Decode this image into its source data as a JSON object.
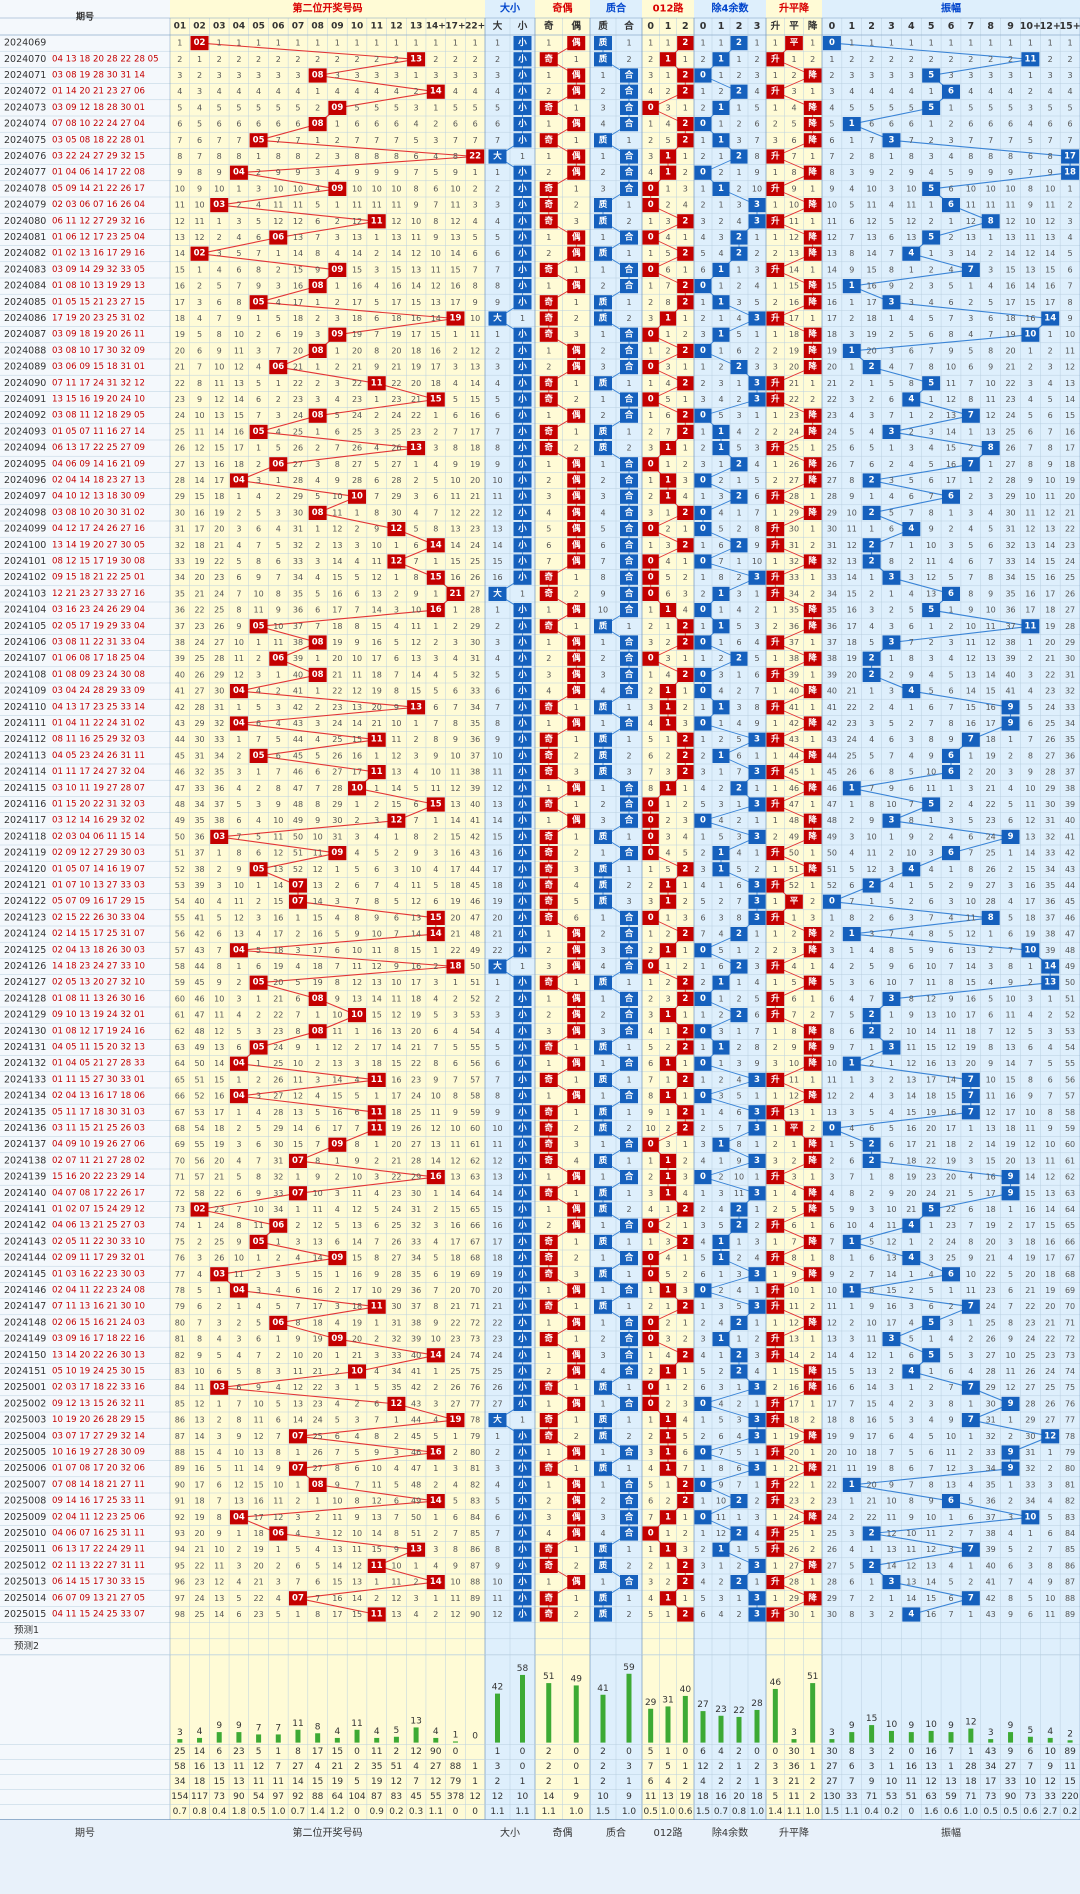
{
  "header": {
    "issue_label": "期号",
    "groups": [
      {
        "key": "pos2",
        "label": "第二位开奖号码",
        "color": "#d90000"
      },
      {
        "key": "size",
        "label": "大小",
        "color": "#0044cc"
      },
      {
        "key": "oe",
        "label": "奇偶",
        "color": "#d90000"
      },
      {
        "key": "pc",
        "label": "质合",
        "color": "#0044cc"
      },
      {
        "key": "r3",
        "label": "012路",
        "color": "#d90000"
      },
      {
        "key": "r4",
        "label": "除4余数",
        "color": "#0044cc"
      },
      {
        "key": "trend",
        "label": "升平降",
        "color": "#d90000"
      },
      {
        "key": "amp",
        "label": "振幅",
        "color": "#0044cc"
      }
    ],
    "sub": {
      "pos2": [
        "01",
        "02",
        "03",
        "04",
        "05",
        "06",
        "07",
        "08",
        "09",
        "10",
        "11",
        "12",
        "13",
        "14+",
        "17+",
        "22+"
      ],
      "size": [
        "大",
        "小"
      ],
      "oe": [
        "奇",
        "偶"
      ],
      "pc": [
        "质",
        "合"
      ],
      "r3": [
        "0",
        "1",
        "2"
      ],
      "r4": [
        "0",
        "1",
        "2",
        "3"
      ],
      "trend": [
        "升",
        "平",
        "降"
      ],
      "amp": [
        "0",
        "1",
        "2",
        "3",
        "4",
        "5",
        "6",
        "7",
        "8",
        "9",
        "10+",
        "12+",
        "15+"
      ]
    }
  },
  "rows": [
    {
      "issue": "2024069",
      "nums": "",
      "v": 2
    },
    {
      "issue": "2024070",
      "nums": "04 13 18 20 28 22 28 05",
      "v": 13
    },
    {
      "issue": "2024071",
      "nums": "03 08 19 28 30 31 14",
      "v": 8
    },
    {
      "issue": "2024072",
      "nums": "01 14 20 21 23 27 06",
      "v": 14
    },
    {
      "issue": "2024073",
      "nums": "03 09 12 18 28 30 01",
      "v": 9
    },
    {
      "issue": "2024074",
      "nums": "07 08 10 22 24 27 04",
      "v": 8
    },
    {
      "issue": "2024075",
      "nums": "03 05 08 18 22 28 01",
      "v": 5
    },
    {
      "issue": "2024076",
      "nums": "03 22 24 27 29 32 15",
      "v": 22
    },
    {
      "issue": "2024077",
      "nums": "01 04 06 14 17 22 08",
      "v": 4
    },
    {
      "issue": "2024078",
      "nums": "05 09 14 21 22 26 17",
      "v": 9
    },
    {
      "issue": "2024079",
      "nums": "02 03 06 07 16 26 04",
      "v": 3
    },
    {
      "issue": "2024080",
      "nums": "06 11 12 27 29 32 16",
      "v": 11
    },
    {
      "issue": "2024081",
      "nums": "01 06 12 17 23 25 04",
      "v": 6
    },
    {
      "issue": "2024082",
      "nums": "01 02 13 16 17 29 16",
      "v": 2
    },
    {
      "issue": "2024083",
      "nums": "03 09 14 29 32 33 05",
      "v": 9
    },
    {
      "issue": "2024084",
      "nums": "01 08 10 13 19 29 13",
      "v": 8
    },
    {
      "issue": "2024085",
      "nums": "01 05 15 21 23 27 15",
      "v": 5
    },
    {
      "issue": "2024086",
      "nums": "17 19 20 23 25 31 02",
      "v": 19
    },
    {
      "issue": "2024087",
      "nums": "03 09 18 19 20 26 11",
      "v": 9
    },
    {
      "issue": "2024088",
      "nums": "03 08 10 17 30 32 09",
      "v": 8
    },
    {
      "issue": "2024089",
      "nums": "03 06 09 15 18 31 01",
      "v": 6
    },
    {
      "issue": "2024090",
      "nums": "07 11 17 24 31 32 12",
      "v": 11
    },
    {
      "issue": "2024091",
      "nums": "13 15 16 19 20 24 10",
      "v": 15
    },
    {
      "issue": "2024092",
      "nums": "03 08 11 12 18 29 05",
      "v": 8
    },
    {
      "issue": "2024093",
      "nums": "01 05 07 11 16 27 14",
      "v": 5
    },
    {
      "issue": "2024094",
      "nums": "06 13 17 22 25 27 09",
      "v": 13
    },
    {
      "issue": "2024095",
      "nums": "04 06 09 14 16 21 09",
      "v": 6
    },
    {
      "issue": "2024096",
      "nums": "02 04 14 18 23 27 13",
      "v": 4
    },
    {
      "issue": "2024097",
      "nums": "04 10 12 13 18 30 09",
      "v": 10
    },
    {
      "issue": "2024098",
      "nums": "03 08 10 20 30 31 02",
      "v": 8
    },
    {
      "issue": "2024099",
      "nums": "04 12 17 24 26 27 16",
      "v": 12
    },
    {
      "issue": "2024100",
      "nums": "13 14 19 20 27 30 05",
      "v": 14
    },
    {
      "issue": "2024101",
      "nums": "08 12 15 17 19 30 08",
      "v": 12
    },
    {
      "issue": "2024102",
      "nums": "09 15 18 21 22 25 01",
      "v": 15
    },
    {
      "issue": "2024103",
      "nums": "12 21 23 27 33 27 16",
      "v": 21
    },
    {
      "issue": "2024104",
      "nums": "03 16 23 24 26 29 04",
      "v": 16
    },
    {
      "issue": "2024105",
      "nums": "02 05 17 19 29 33 04",
      "v": 5
    },
    {
      "issue": "2024106",
      "nums": "03 08 11 22 31 33 04",
      "v": 8
    },
    {
      "issue": "2024107",
      "nums": "01 06 08 17 18 25 04",
      "v": 6
    },
    {
      "issue": "2024108",
      "nums": "01 08 09 23 24 30 08",
      "v": 8
    },
    {
      "issue": "2024109",
      "nums": "03 04 24 28 29 33 09",
      "v": 4
    },
    {
      "issue": "2024110",
      "nums": "04 13 17 23 25 33 14",
      "v": 13
    },
    {
      "issue": "2024111",
      "nums": "01 04 11 22 24 31 02",
      "v": 4
    },
    {
      "issue": "2024112",
      "nums": "08 11 16 25 29 32 03",
      "v": 11
    },
    {
      "issue": "2024113",
      "nums": "04 05 23 24 26 31 11",
      "v": 5
    },
    {
      "issue": "2024114",
      "nums": "01 11 17 24 27 32 04",
      "v": 11
    },
    {
      "issue": "2024115",
      "nums": "03 10 11 19 27 28 07",
      "v": 10
    },
    {
      "issue": "2024116",
      "nums": "01 15 20 22 31 32 03",
      "v": 15
    },
    {
      "issue": "2024117",
      "nums": "03 12 14 16 29 32 02",
      "v": 12
    },
    {
      "issue": "2024118",
      "nums": "02 03 04 06 11 15 14",
      "v": 3
    },
    {
      "issue": "2024119",
      "nums": "02 09 12 27 29 30 03",
      "v": 9
    },
    {
      "issue": "2024120",
      "nums": "01 05 07 14 16 19 07",
      "v": 5
    },
    {
      "issue": "2024121",
      "nums": "01 07 10 13 27 33 03",
      "v": 7
    },
    {
      "issue": "2024122",
      "nums": "05 07 09 16 17 29 15",
      "v": 7
    },
    {
      "issue": "2024123",
      "nums": "02 15 22 26 30 33 04",
      "v": 15
    },
    {
      "issue": "2024124",
      "nums": "02 14 15 17 25 31 07",
      "v": 14
    },
    {
      "issue": "2024125",
      "nums": "02 04 13 18 26 30 03",
      "v": 4
    },
    {
      "issue": "2024126",
      "nums": "14 18 23 24 27 33 10",
      "v": 18
    },
    {
      "issue": "2024127",
      "nums": "02 05 13 20 27 32 10",
      "v": 5
    },
    {
      "issue": "2024128",
      "nums": "01 08 11 13 26 30 16",
      "v": 8
    },
    {
      "issue": "2024129",
      "nums": "09 10 13 19 24 32 01",
      "v": 10
    },
    {
      "issue": "2024130",
      "nums": "01 08 12 17 19 24 16",
      "v": 8
    },
    {
      "issue": "2024131",
      "nums": "04 05 11 15 20 32 13",
      "v": 5
    },
    {
      "issue": "2024132",
      "nums": "01 04 05 21 27 28 33",
      "v": 4
    },
    {
      "issue": "2024133",
      "nums": "01 11 15 27 30 33 01",
      "v": 11
    },
    {
      "issue": "2024134",
      "nums": "02 04 13 16 17 18 06",
      "v": 4
    },
    {
      "issue": "2024135",
      "nums": "05 11 17 18 30 31 03",
      "v": 11
    },
    {
      "issue": "2024136",
      "nums": "03 11 15 21 25 26 03",
      "v": 11
    },
    {
      "issue": "2024137",
      "nums": "04 09 10 19 26 27 06",
      "v": 9
    },
    {
      "issue": "2024138",
      "nums": "02 07 11 21 27 28 02",
      "v": 7
    },
    {
      "issue": "2024139",
      "nums": "15 16 20 22 23 29 14",
      "v": 16
    },
    {
      "issue": "2024140",
      "nums": "04 07 08 17 22 26 17",
      "v": 7
    },
    {
      "issue": "2024141",
      "nums": "01 02 07 15 24 29 12",
      "v": 2
    },
    {
      "issue": "2024142",
      "nums": "04 06 13 21 25 27 03",
      "v": 6
    },
    {
      "issue": "2024143",
      "nums": "02 05 11 22 30 33 10",
      "v": 5
    },
    {
      "issue": "2024144",
      "nums": "02 09 11 17 29 32 01",
      "v": 9
    },
    {
      "issue": "2024145",
      "nums": "01 03 16 22 23 30 03",
      "v": 3
    },
    {
      "issue": "2024146",
      "nums": "02 04 11 22 23 24 08",
      "v": 4
    },
    {
      "issue": "2024147",
      "nums": "07 11 13 16 21 30 10",
      "v": 11
    },
    {
      "issue": "2024148",
      "nums": "02 06 15 16 21 24 03",
      "v": 6
    },
    {
      "issue": "2024149",
      "nums": "03 09 16 17 18 22 16",
      "v": 9
    },
    {
      "issue": "2024150",
      "nums": "13 14 20 22 26 30 13",
      "v": 14
    },
    {
      "issue": "2024151",
      "nums": "05 10 19 24 25 30 15",
      "v": 10
    },
    {
      "issue": "2025001",
      "nums": "02 03 17 18 22 33 16",
      "v": 3
    },
    {
      "issue": "2025002",
      "nums": "09 12 13 15 26 32 11",
      "v": 12
    },
    {
      "issue": "2025003",
      "nums": "10 19 20 26 28 29 15",
      "v": 19
    },
    {
      "issue": "2025004",
      "nums": "03 07 17 27 29 32 14",
      "v": 7
    },
    {
      "issue": "2025005",
      "nums": "10 16 19 27 28 30 09",
      "v": 16
    },
    {
      "issue": "2025006",
      "nums": "01 07 08 17 20 32 06",
      "v": 7
    },
    {
      "issue": "2025007",
      "nums": "07 08 14 18 21 27 11",
      "v": 8
    },
    {
      "issue": "2025008",
      "nums": "09 14 16 17 25 33 11",
      "v": 14
    },
    {
      "issue": "2025009",
      "nums": "02 04 11 12 23 25 06",
      "v": 4
    },
    {
      "issue": "2025010",
      "nums": "04 06 07 16 25 31 11",
      "v": 6
    },
    {
      "issue": "2025011",
      "nums": "06 13 17 22 24 29 11",
      "v": 13
    },
    {
      "issue": "2025012",
      "nums": "02 11 13 22 27 31 11",
      "v": 11
    },
    {
      "issue": "2025013",
      "nums": "06 14 15 17 30 33 15",
      "v": 14
    },
    {
      "issue": "2025014",
      "nums": "06 07 09 13 21 27 05",
      "v": 7
    },
    {
      "issue": "2025015",
      "nums": "04 11 15 24 25 33 07",
      "v": 11
    }
  ],
  "predict": [
    "预测1",
    "预测2"
  ],
  "bars": {
    "pos2": [
      3,
      4,
      9,
      9,
      7,
      7,
      11,
      8,
      4,
      11,
      4,
      5,
      13,
      4,
      1,
      0
    ],
    "size": [
      42,
      58
    ],
    "oe": [
      51,
      49
    ],
    "pc": [
      41,
      59
    ],
    "r3": [
      29,
      31,
      40
    ],
    "r4": [
      27,
      23,
      22,
      28
    ],
    "trend": [
      46,
      3,
      51
    ],
    "amp": [
      3,
      9,
      15,
      10,
      9,
      10,
      9,
      12,
      3,
      9,
      5,
      4,
      2
    ]
  },
  "stats": {
    "pos2": [
      [
        "25",
        "14",
        "6",
        "23",
        "5",
        "1",
        "8",
        "17",
        "15",
        "0",
        "11",
        "2",
        "12",
        "90",
        "0",
        " "
      ],
      [
        "58",
        "16",
        "13",
        "11",
        "12",
        "7",
        "27",
        "4",
        "21",
        "2",
        "35",
        "51",
        "4",
        "27",
        "88",
        "1"
      ],
      [
        "34",
        "18",
        "15",
        "13",
        "11",
        "11",
        "14",
        "15",
        "19",
        "5",
        "19",
        "12",
        "7",
        "12",
        "79",
        "1"
      ],
      [
        "154",
        "117",
        "73",
        "90",
        "54",
        "97",
        "92",
        "88",
        "64",
        "104",
        "87",
        "83",
        "45",
        "55",
        "378",
        "12"
      ],
      [
        "0.7",
        "0.8",
        "0.4",
        "1.8",
        "0.5",
        "1.0",
        "0.7",
        "1.4",
        "1.2",
        "0",
        "0.9",
        "0.2",
        "0.3",
        "1.1",
        "0",
        "0"
      ]
    ],
    "size": [
      [
        "1",
        "0"
      ],
      [
        "3",
        "0"
      ],
      [
        "2",
        "1"
      ],
      [
        "12",
        "10"
      ],
      [
        "1.1",
        "1.1"
      ]
    ],
    "oe": [
      [
        "2",
        "0"
      ],
      [
        "2",
        "0"
      ],
      [
        "2",
        "1"
      ],
      [
        "14",
        "9"
      ],
      [
        "1.1",
        "1.0"
      ]
    ],
    "pc": [
      [
        "2",
        "0"
      ],
      [
        "2",
        "3"
      ],
      [
        "2",
        "1"
      ],
      [
        "10",
        "9"
      ],
      [
        "1.5",
        "1.0"
      ]
    ],
    "r3": [
      [
        "5",
        "1",
        "0"
      ],
      [
        "7",
        "5",
        "1"
      ],
      [
        "6",
        "4",
        "2"
      ],
      [
        "11",
        "13",
        "19"
      ],
      [
        "0.5",
        "1.0",
        "0.6"
      ]
    ],
    "r4": [
      [
        "6",
        "4",
        "2",
        "0"
      ],
      [
        "12",
        "2",
        "1",
        "2"
      ],
      [
        "4",
        "2",
        "2",
        "1"
      ],
      [
        "18",
        "16",
        "20",
        "18"
      ],
      [
        "1.5",
        "0.7",
        "0.8",
        "1.0"
      ]
    ],
    "trend": [
      [
        "0",
        "30",
        "1"
      ],
      [
        "3",
        "36",
        "1"
      ],
      [
        "3",
        "21",
        "2"
      ],
      [
        "5",
        "11",
        "2"
      ],
      [
        "1.4",
        "1.1",
        "1.0"
      ]
    ],
    "amp": [
      [
        "30",
        "8",
        "3",
        "2",
        "0",
        "16",
        "7",
        "1",
        "43",
        "9",
        "6",
        "10",
        "89"
      ],
      [
        "27",
        "6",
        "3",
        "1",
        "16",
        "13",
        "1",
        "28",
        "34",
        "27",
        "7",
        "9",
        "11"
      ],
      [
        "27",
        "7",
        "9",
        "10",
        "11",
        "12",
        "13",
        "18",
        "17",
        "33",
        "10",
        "12",
        "15"
      ],
      [
        "130",
        "33",
        "71",
        "53",
        "51",
        "63",
        "59",
        "71",
        "73",
        "90",
        "73",
        "33",
        "220"
      ],
      [
        "1.5",
        "1.1",
        "0.4",
        "0.2",
        "0",
        "1.6",
        "0.6",
        "1.0",
        "0.5",
        "0.5",
        "0.6",
        "2.7",
        "0.2"
      ]
    ]
  },
  "footer": {
    "issue_label": "期号",
    "group_labels": [
      "第二位开奖号码",
      "大小",
      "奇偶",
      "质合",
      "012路",
      "除4余数",
      "升平降",
      "振幅"
    ]
  },
  "colors": {
    "red": "#c40000",
    "blue": "#1560bd",
    "yellow_bg": "#fffbd6",
    "blue_bg": "#deeffc",
    "white_bg": "#ffffff",
    "grid": "#b9cfe0",
    "line_red": "#e33535",
    "line_blue": "#3a84d6",
    "bar_green": "#3daa34"
  }
}
